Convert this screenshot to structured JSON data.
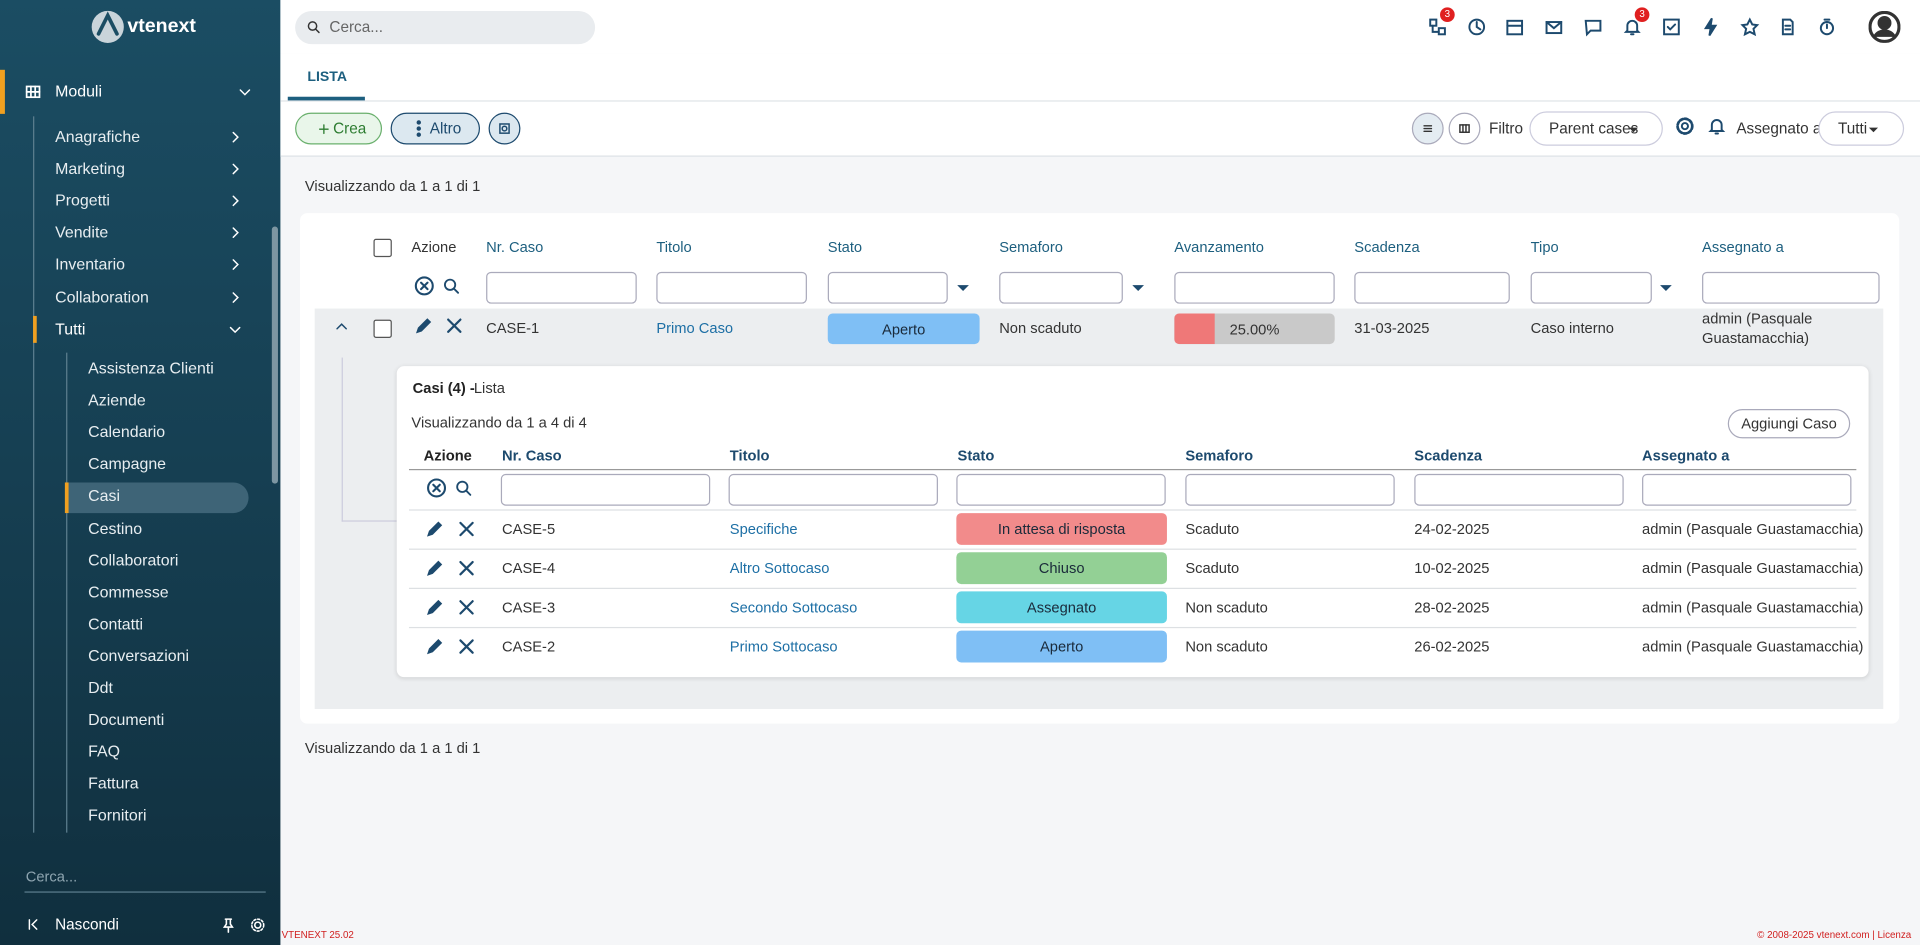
{
  "brand": "vtenext",
  "topbar": {
    "search": "Cerca...",
    "badges": [
      "3",
      "3"
    ]
  },
  "sidebar": {
    "modules": "Moduli",
    "groups": [
      "Anagrafiche",
      "Marketing",
      "Progetti",
      "Vendite",
      "Inventario",
      "Collaboration"
    ],
    "all": "Tutti",
    "items": [
      "Assistenza Clienti",
      "Aziende",
      "Calendario",
      "Campagne",
      "Casi",
      "Cestino",
      "Collaboratori",
      "Commesse",
      "Contatti",
      "Conversazioni",
      "Ddt",
      "Documenti",
      "FAQ",
      "Fattura",
      "Fornitori"
    ],
    "search": "Cerca...",
    "hide": "Nascondi"
  },
  "tabs": [
    "LISTA"
  ],
  "toolbar": {
    "create": "Crea",
    "more": "Altro",
    "filter_label": "Filtro",
    "filter_value": "Parent cases",
    "assigned_label": "Assegnato a",
    "assigned_value": "Tutti"
  },
  "list": {
    "summary_top": "Visualizzando da 1 a 1 di 1",
    "summary_bottom": "Visualizzando da 1 a 1 di 1",
    "columns": [
      "Azione",
      "Nr. Caso",
      "Titolo",
      "Stato",
      "Semaforo",
      "Avanzamento",
      "Scadenza",
      "Tipo",
      "Assegnato a"
    ],
    "row": {
      "number": "CASE-1",
      "title": "Primo Caso",
      "status": "Aperto",
      "status_color": "#7fbff5",
      "deadline_state": "Non scaduto",
      "progress": {
        "value": 25,
        "label": "25.00%"
      },
      "deadline": "31-03-2025",
      "type": "Caso interno",
      "assigned": "admin (Pasquale Guastamacchia)"
    }
  },
  "subtable": {
    "title": "Casi (4) -",
    "subtitle": "Lista",
    "summary": "Visualizzando da 1 a 4 di 4",
    "add_button": "Aggiungi Caso",
    "columns": [
      "Azione",
      "Nr. Caso",
      "Titolo",
      "Stato",
      "Semaforo",
      "Scadenza",
      "Assegnato a"
    ],
    "rows": [
      {
        "number": "CASE-5",
        "title": "Specifiche",
        "status": "In attesa di risposta",
        "status_color": "#f28b8b",
        "deadline_state": "Scaduto",
        "deadline": "24-02-2025",
        "assigned": "admin (Pasquale Guastamacchia)"
      },
      {
        "number": "CASE-4",
        "title": "Altro Sottocaso",
        "status": "Chiuso",
        "status_color": "#93d095",
        "deadline_state": "Scaduto",
        "deadline": "10-02-2025",
        "assigned": "admin (Pasquale Guastamacchia)"
      },
      {
        "number": "CASE-3",
        "title": "Secondo Sottocaso",
        "status": "Assegnato",
        "status_color": "#66d5e5",
        "deadline_state": "Non scaduto",
        "deadline": "28-02-2025",
        "assigned": "admin (Pasquale Guastamacchia)"
      },
      {
        "number": "CASE-2",
        "title": "Primo Sottocaso",
        "status": "Aperto",
        "status_color": "#7fbff5",
        "deadline_state": "Non scaduto",
        "deadline": "26-02-2025",
        "assigned": "admin (Pasquale Guastamacchia)"
      }
    ]
  },
  "footer": {
    "version": "VTENEXT 25.02",
    "copyright": "© 2008-2025 vtenext.com | Licenza"
  }
}
